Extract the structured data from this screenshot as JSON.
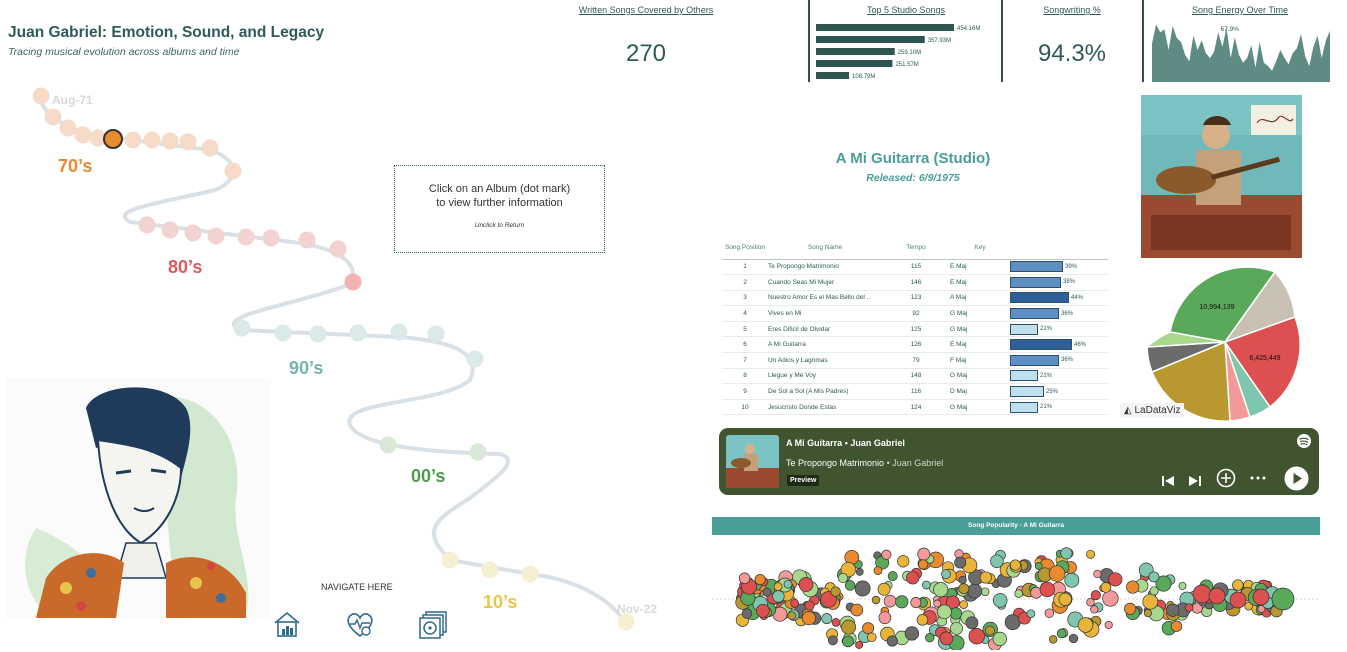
{
  "header": {
    "title": "Juan Gabriel: Emotion, Sound, and Legacy",
    "subtitle": "Tracing musical evolution across albums and time"
  },
  "kpis": {
    "covered": {
      "title": "Written Songs Covered by Others",
      "value": "270"
    },
    "top5": {
      "title": "Top 5 Studio Songs",
      "labels": [
        "454.16M",
        "357.93M",
        "259.10M",
        "251.57M",
        "108.79M"
      ],
      "values": [
        454.16,
        357.93,
        259.1,
        251.57,
        108.79
      ]
    },
    "songwriting": {
      "title": "Songwriting %",
      "value": "94.3%"
    },
    "energy": {
      "title": "Song Energy Over Time",
      "peak_label": "67.9%",
      "values": [
        48,
        72,
        62,
        66,
        40,
        70,
        55,
        50,
        34,
        26,
        58,
        40,
        52,
        36,
        30,
        38,
        62,
        44,
        67.9,
        30,
        56,
        34,
        24,
        30,
        46,
        18,
        50,
        24,
        20,
        14,
        26,
        40,
        30,
        22,
        36,
        42,
        60,
        32,
        20,
        44,
        58,
        30,
        52,
        64
      ]
    }
  },
  "timeline": {
    "start_label": "Aug-71",
    "end_label": "Nov-22",
    "decades": [
      {
        "label": "70’s",
        "color": "#e88a2e"
      },
      {
        "label": "80’s",
        "color": "#de5b5b"
      },
      {
        "label": "90’s",
        "color": "#74b3b0"
      },
      {
        "label": "00’s",
        "color": "#4f9a4b"
      },
      {
        "label": "10’s",
        "color": "#e9c547"
      }
    ]
  },
  "hint": {
    "line1": "Click on an Album (dot mark)",
    "line2": "to view further information",
    "line3": "Unclick to Return"
  },
  "album": {
    "title": "A Mi Guitarra (Studio)",
    "released": "Released: 6/9/1975"
  },
  "songs": {
    "headers": [
      "Song Position",
      "Song Name",
      "Tempo",
      "Key"
    ],
    "rows": [
      {
        "pos": "1",
        "name": "Te Propongo Matrimonio",
        "tempo": "115",
        "key": "E Maj",
        "pct": 39,
        "pct_label": "39%"
      },
      {
        "pos": "2",
        "name": "Cuando Seas Mi Mujer",
        "tempo": "146",
        "key": "E Maj",
        "pct": 38,
        "pct_label": "38%"
      },
      {
        "pos": "3",
        "name": "Nuestro Amor Es el Mas Bello del ..",
        "tempo": "123",
        "key": "A Maj",
        "pct": 44,
        "pct_label": "44%"
      },
      {
        "pos": "4",
        "name": "Vives en Mi",
        "tempo": "92",
        "key": "G Maj",
        "pct": 36,
        "pct_label": "36%"
      },
      {
        "pos": "5",
        "name": "Eres Dificil de Olvidar",
        "tempo": "125",
        "key": "G Maj",
        "pct": 21,
        "pct_label": "21%"
      },
      {
        "pos": "6",
        "name": "A Mi Guitarra",
        "tempo": "126",
        "key": "E Maj",
        "pct": 46,
        "pct_label": "46%"
      },
      {
        "pos": "7",
        "name": "Un Adios y Lagrimas",
        "tempo": "79",
        "key": "F Maj",
        "pct": 36,
        "pct_label": "36%"
      },
      {
        "pos": "8",
        "name": "Llegue y Me Voy",
        "tempo": "148",
        "key": "G Maj",
        "pct": 21,
        "pct_label": "21%"
      },
      {
        "pos": "9",
        "name": "De Sol a Sol (A Mis Padres)",
        "tempo": "116",
        "key": "D Maj",
        "pct": 25,
        "pct_label": "25%"
      },
      {
        "pos": "10",
        "name": "Jesucristo Donde Estas",
        "tempo": "124",
        "key": "G Maj",
        "pct": 21,
        "pct_label": "21%"
      }
    ]
  },
  "pie": {
    "labels": [
      "10,994,139",
      "6,425,449"
    ],
    "values": [
      10994139,
      6425449
    ]
  },
  "brand": "LaDataViz",
  "player": {
    "line1_album": "A Mi Guitarra",
    "line1_artist": "Juan Gabriel",
    "track": "Te Propongo Matrimonio",
    "track_artist": "Juan Gabriel",
    "badge": "Preview"
  },
  "popularity": {
    "title": "Song Popularity - A Mi Guitarra"
  },
  "nav": {
    "title": "NAVIGATE HERE"
  },
  "icons": [
    "home-chart-icon",
    "heart-music-icon",
    "album-stack-icon",
    "spotify-icon",
    "previous-icon",
    "next-icon",
    "add-icon",
    "more-icon",
    "play-icon"
  ]
}
